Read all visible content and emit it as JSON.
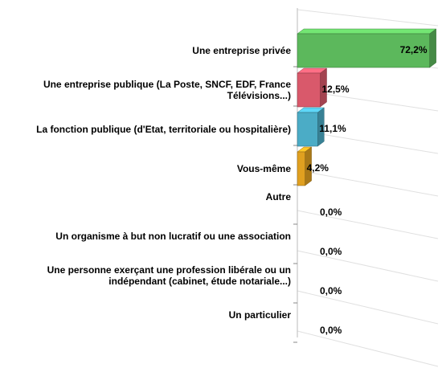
{
  "chart_data": {
    "type": "bar3d",
    "categories": [
      "Une entreprise privée",
      "Une entreprise publique (La Poste, SNCF, EDF, France Télévisions...)",
      "La fonction publique (d'Etat, territoriale ou hospitalière)",
      "Vous-même",
      "Autre",
      "Un organisme à but non lucratif ou une association",
      "Une personne exerçant une profession libérale ou un indépendant (cabinet, étude notariale...)",
      "Un particulier"
    ],
    "values": [
      72.2,
      12.5,
      11.1,
      4.2,
      0,
      0,
      0,
      0
    ],
    "value_labels": [
      "72,2%",
      "12,5%",
      "11,1%",
      "4,2%",
      "0,0%",
      "0,0%",
      "0,0%",
      "0,0%"
    ],
    "colors": [
      "#5cb85c",
      "#d9596b",
      "#4bacc6",
      "#e0a020",
      "#888888",
      "#888888",
      "#888888",
      "#888888"
    ],
    "xlim": [
      0,
      75
    ]
  }
}
